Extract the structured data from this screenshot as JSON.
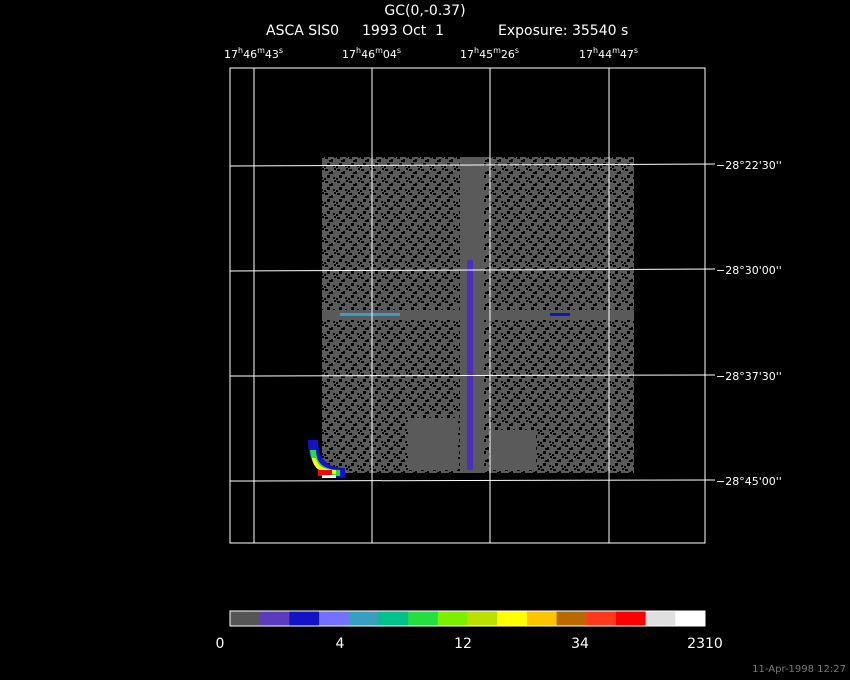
{
  "title": "GC(0,-0.37)",
  "subtitle": {
    "instrument": "ASCA SIS0",
    "date": "1993 Oct  1",
    "exposure": "Exposure: 35540 s"
  },
  "ra_labels": [
    {
      "hours": "17",
      "h": "h",
      "minutes": "46",
      "m": "m",
      "seconds": "43",
      "s": "s"
    },
    {
      "hours": "17",
      "h": "h",
      "minutes": "46",
      "m": "m",
      "seconds": "04",
      "s": "s"
    },
    {
      "hours": "17",
      "h": "h",
      "minutes": "45",
      "m": "m",
      "seconds": "26",
      "s": "s"
    },
    {
      "hours": "17",
      "h": "h",
      "minutes": "44",
      "m": "m",
      "seconds": "47",
      "s": "s"
    }
  ],
  "dec_labels": [
    "−28°22'30''",
    "−28°30'00''",
    "−28°37'30''",
    "−28°45'00''"
  ],
  "colorbar": {
    "colors": [
      "#555555",
      "#5a3cbc",
      "#1212c8",
      "#7272ff",
      "#3a9ec0",
      "#00c28a",
      "#22e040",
      "#7cf000",
      "#bce000",
      "#ffff00",
      "#ffc400",
      "#b86a00",
      "#ff3a1a",
      "#ff0000",
      "#e0e0e0",
      "#ffffff"
    ],
    "labels": [
      0,
      4,
      12,
      34,
      2310
    ]
  },
  "timestamp": "11-Apr-1998 12:27"
}
